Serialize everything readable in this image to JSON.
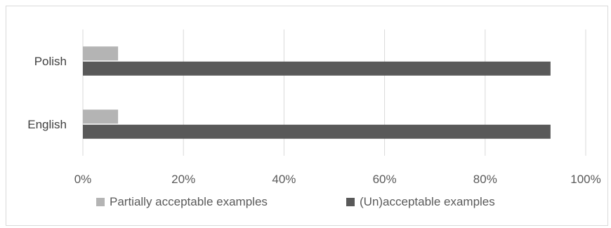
{
  "chart_data": {
    "type": "bar",
    "orientation": "horizontal",
    "categories": [
      "English",
      "Polish"
    ],
    "series": [
      {
        "name": "Partially acceptable examples",
        "values": [
          7,
          7
        ],
        "color": "#b4b4b4"
      },
      {
        "name": "(Un)acceptable examples",
        "values": [
          93,
          93
        ],
        "color": "#595959"
      }
    ],
    "x_ticks": [
      "0%",
      "20%",
      "40%",
      "60%",
      "80%",
      "100%"
    ],
    "xlim": [
      0,
      100
    ],
    "unit": "%",
    "grid": true,
    "legend_position": "bottom"
  }
}
